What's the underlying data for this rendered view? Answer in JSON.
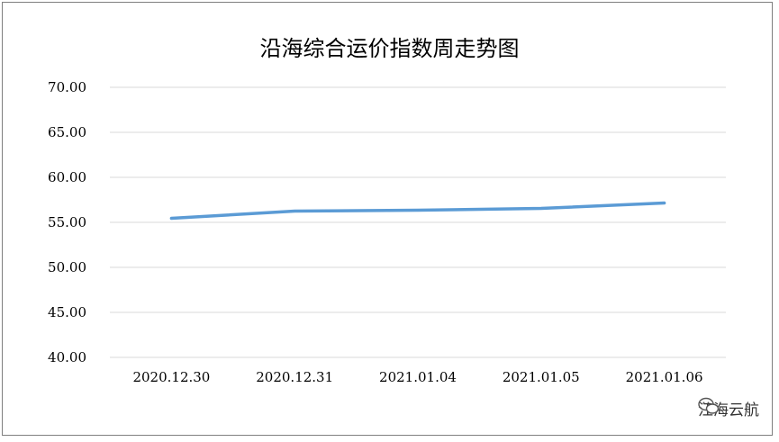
{
  "chart_data": {
    "type": "line",
    "title": "沿海综合运价指数周走势图",
    "xlabel": "",
    "ylabel": "",
    "categories": [
      "2020.12.30",
      "2020.12.31",
      "2021.01.04",
      "2021.01.05",
      "2021.01.06"
    ],
    "series": [
      {
        "values": [
          55.45,
          56.25,
          56.35,
          56.55,
          57.15
        ]
      }
    ],
    "yticks": [
      "70.00",
      "65.00",
      "60.00",
      "55.00",
      "50.00",
      "45.00",
      "40.00"
    ],
    "ylim": [
      40,
      70
    ],
    "grid": true,
    "legend": "none",
    "line_color": "#5b9bd5",
    "grid_color": "#d9d9d9"
  },
  "watermark": {
    "icon": "wechat-icon",
    "text": "江海云航"
  }
}
